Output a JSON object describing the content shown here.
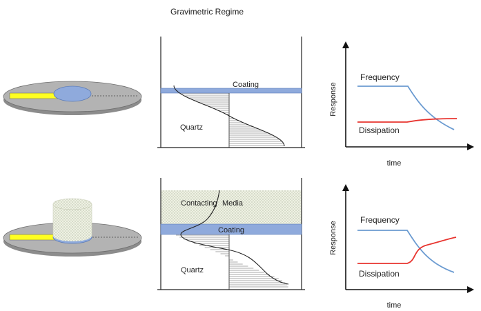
{
  "title": "Gravimetric Regime",
  "top_row": {
    "coating_label": "Coating",
    "quartz_label": "Quartz",
    "chart": {
      "y_axis_label": "Response",
      "x_axis_label": "time",
      "frequency_label": "Frequency",
      "dissipation_label": "Dissipation"
    }
  },
  "bottom_row": {
    "media_label_left": "Contacting",
    "media_label_right": "Media",
    "coating_label": "Coating",
    "quartz_label": "Quartz",
    "chart": {
      "y_axis_label": "Response",
      "x_axis_label": "time",
      "frequency_label": "Frequency",
      "dissipation_label": "Dissipation"
    }
  },
  "colors": {
    "disk_gray": "#b3b3b3",
    "electrode_yellow": "#ffff22",
    "coating_blue": "#8faadc",
    "frequency_blue": "#6b9bd1",
    "dissipation_red": "#e8342f",
    "media_fill": "#e9eddd"
  }
}
